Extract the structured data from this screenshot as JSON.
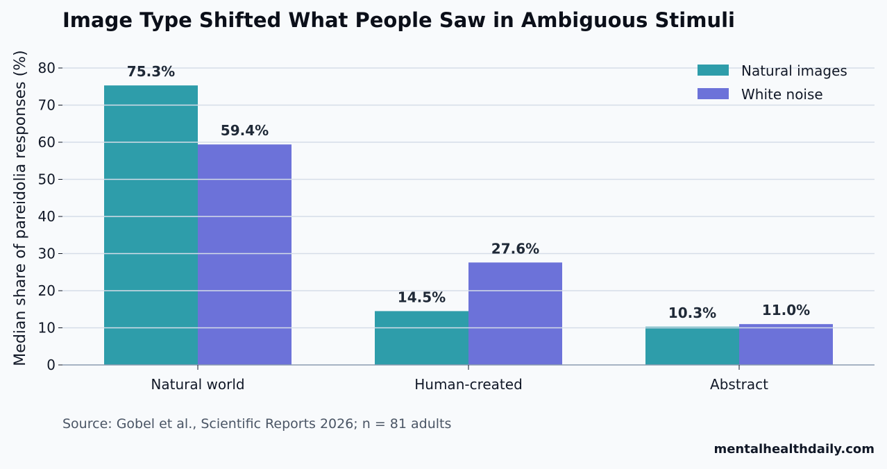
{
  "chart_data": {
    "type": "bar",
    "title": "Image Type Shifted What People Saw in Ambiguous Stimuli",
    "xlabel": "",
    "ylabel": "Median share of pareidolia responses (%)",
    "categories": [
      "Natural world",
      "Human-created",
      "Abstract"
    ],
    "series": [
      {
        "name": "Natural images",
        "color": "#2e9daa",
        "values": [
          75.3,
          14.5,
          10.3
        ],
        "labels": [
          "75.3%",
          "14.5%",
          "10.3%"
        ]
      },
      {
        "name": "White noise",
        "color": "#6c72d9",
        "values": [
          59.4,
          27.6,
          11.0
        ],
        "labels": [
          "59.4%",
          "27.6%",
          "11.0%"
        ]
      }
    ],
    "ylim": [
      0,
      85
    ],
    "yticks": [
      0,
      10,
      20,
      30,
      40,
      50,
      60,
      70,
      80
    ],
    "grid": true,
    "legend": "top-right"
  },
  "footer": {
    "source": "Source: Gobel et al., Scientific Reports 2026; n = 81 adults",
    "brand": "mentalhealthdaily.com"
  }
}
